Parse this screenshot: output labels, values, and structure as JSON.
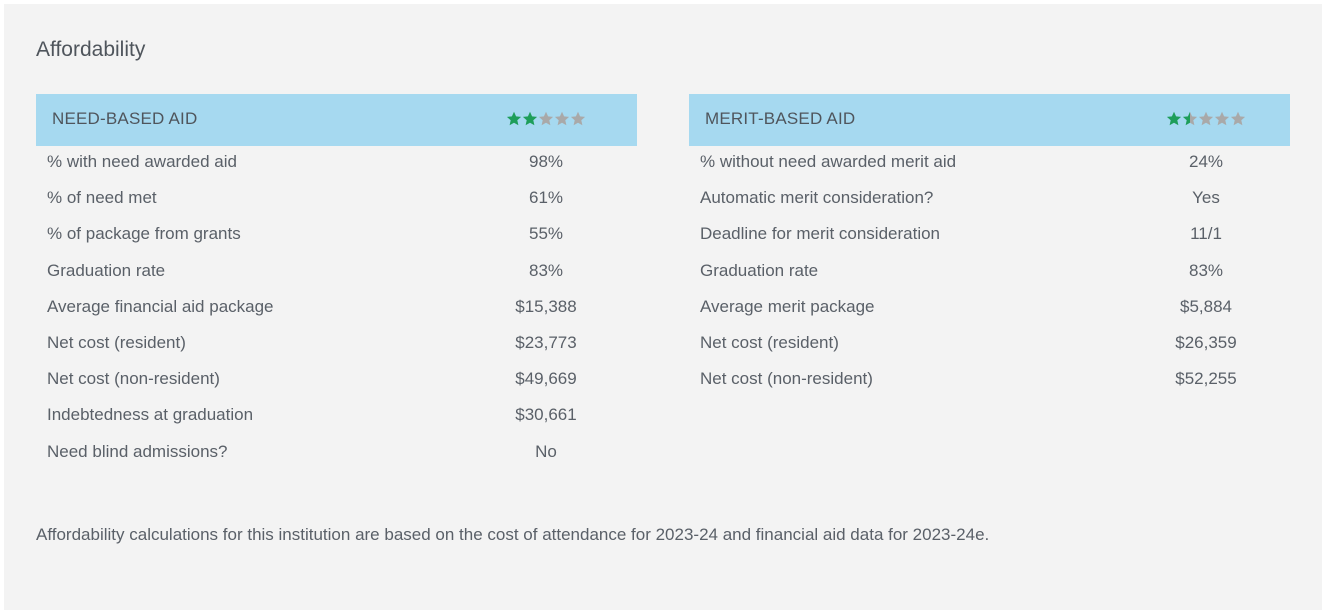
{
  "section": {
    "title": "Affordability"
  },
  "need_based": {
    "heading": "NEED-BASED AID",
    "rating": 2,
    "rating_max": 5,
    "rows": [
      {
        "label": "% with need awarded aid",
        "value": "98%"
      },
      {
        "label": "% of need met",
        "value": "61%"
      },
      {
        "label": "% of package from grants",
        "value": "55%"
      },
      {
        "label": "Graduation rate",
        "value": "83%"
      },
      {
        "label": "Average financial aid package",
        "value": "$15,388"
      },
      {
        "label": "Net cost (resident)",
        "value": "$23,773"
      },
      {
        "label": "Net cost (non-resident)",
        "value": "$49,669"
      },
      {
        "label": "Indebtedness at graduation",
        "value": "$30,661"
      },
      {
        "label": "Need blind admissions?",
        "value": "No"
      }
    ]
  },
  "merit_based": {
    "heading": "MERIT-BASED AID",
    "rating": 1.5,
    "rating_max": 5,
    "rows": [
      {
        "label": "% without need awarded merit aid",
        "value": "24%"
      },
      {
        "label": "Automatic merit consideration?",
        "value": "Yes"
      },
      {
        "label": "Deadline for merit consideration",
        "value": "11/1"
      },
      {
        "label": "Graduation rate",
        "value": "83%"
      },
      {
        "label": "Average merit package",
        "value": "$5,884"
      },
      {
        "label": "Net cost (resident)",
        "value": "$26,359"
      },
      {
        "label": "Net cost (non-resident)",
        "value": "$52,255"
      }
    ]
  },
  "footnote": "Affordability calculations for this institution are based on the cost of attendance for 2023-24 and financial aid data for 2023-24e.",
  "colors": {
    "header_bg": "#a6d9f0",
    "star_filled": "#1e9e5a",
    "star_empty": "#a9a9a9",
    "panel_bg": "#f3f3f3"
  },
  "icons": {
    "star": "star-icon"
  }
}
